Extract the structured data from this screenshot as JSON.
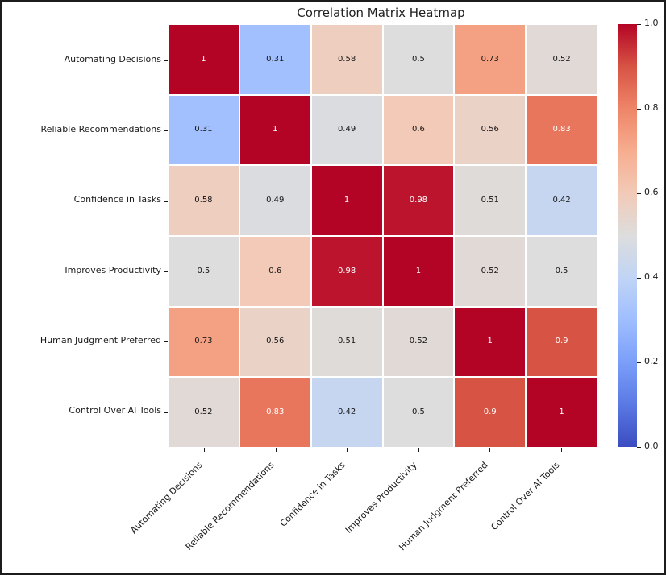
{
  "title": "Correlation Matrix Heatmap",
  "colors": {
    "background": "#ffffff",
    "frame_border": "#1c1c1c",
    "axis_text": "#1a1a1a",
    "tick_mark": "#1a1a1a",
    "annotation_dark": "#151515",
    "annotation_light": "#ffffff"
  },
  "chart_data": {
    "type": "heatmap",
    "title": "Correlation Matrix Heatmap",
    "categories": [
      "Automating Decisions",
      "Reliable Recommendations",
      "Confidence in Tasks",
      "Improves Productivity",
      "Human Judgment Preferred",
      "Control Over AI Tools"
    ],
    "matrix": [
      [
        1,
        0.31,
        0.58,
        0.5,
        0.73,
        0.52
      ],
      [
        0.31,
        1,
        0.49,
        0.6,
        0.56,
        0.83
      ],
      [
        0.58,
        0.49,
        1,
        0.98,
        0.51,
        0.42
      ],
      [
        0.5,
        0.6,
        0.98,
        1,
        0.52,
        0.5
      ],
      [
        0.73,
        0.56,
        0.51,
        0.52,
        1,
        0.9
      ],
      [
        0.52,
        0.83,
        0.42,
        0.5,
        0.9,
        1
      ]
    ],
    "vmin": 0,
    "vmax": 1,
    "grid_lines": "white",
    "legend_position": "right-colorbar",
    "colorbar_ticks": [
      0.0,
      0.2,
      0.4,
      0.6,
      0.8,
      1.0
    ],
    "colorbar_tick_labels": [
      "0.0",
      "0.2",
      "0.4",
      "0.6",
      "0.8",
      "1.0"
    ],
    "colormap": {
      "name": "coolwarm",
      "stops": [
        {
          "t": 0.0,
          "color": "#3b4cc0"
        },
        {
          "t": 0.1,
          "color": "#5a79e4"
        },
        {
          "t": 0.2,
          "color": "#7b9ef9"
        },
        {
          "t": 0.3,
          "color": "#9fbeff"
        },
        {
          "t": 0.4,
          "color": "#c0d4f5"
        },
        {
          "t": 0.5,
          "color": "#dddddd"
        },
        {
          "t": 0.6,
          "color": "#f2cab7"
        },
        {
          "t": 0.7,
          "color": "#f7ad8f"
        },
        {
          "t": 0.8,
          "color": "#ee8568"
        },
        {
          "t": 0.9,
          "color": "#d75344"
        },
        {
          "t": 1.0,
          "color": "#b40426"
        }
      ]
    }
  }
}
